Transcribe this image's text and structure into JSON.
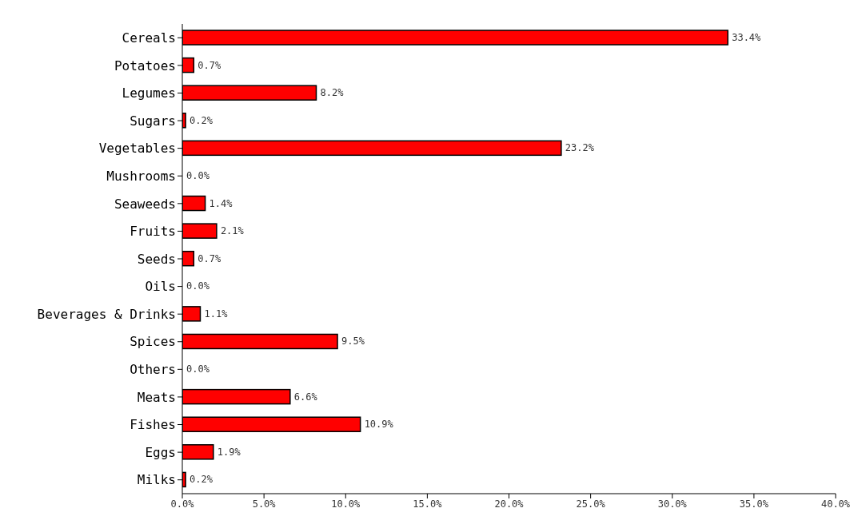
{
  "chart_data": {
    "type": "bar",
    "orientation": "horizontal",
    "categories": [
      "Cereals",
      "Potatoes",
      "Legumes",
      "Sugars",
      "Vegetables",
      "Mushrooms",
      "Seaweeds",
      "Fruits",
      "Seeds",
      "Oils",
      "Beverages & Drinks",
      "Spices",
      "Others",
      "Meats",
      "Fishes",
      "Eggs",
      "Milks"
    ],
    "values": [
      33.4,
      0.7,
      8.2,
      0.2,
      23.2,
      0.0,
      1.4,
      2.1,
      0.7,
      0.0,
      1.1,
      9.5,
      0.0,
      6.6,
      10.9,
      1.9,
      0.2
    ],
    "value_labels": [
      "33.4%",
      "0.7%",
      "8.2%",
      "0.2%",
      "23.2%",
      "0.0%",
      "1.4%",
      "2.1%",
      "0.7%",
      "0.0%",
      "1.1%",
      "9.5%",
      "0.0%",
      "6.6%",
      "10.9%",
      "1.9%",
      "0.2%"
    ],
    "color": "#ff0000",
    "xlim": [
      0,
      40
    ],
    "xticks": [
      {
        "value": 0,
        "label": "0.0%"
      },
      {
        "value": 5,
        "label": "5.0%"
      },
      {
        "value": 10,
        "label": "10.0%"
      },
      {
        "value": 15,
        "label": "15.0%"
      },
      {
        "value": 20,
        "label": "20.0%"
      },
      {
        "value": 25,
        "label": "25.0%"
      },
      {
        "value": 30,
        "label": "30.0%"
      },
      {
        "value": 35,
        "label": "35.0%"
      },
      {
        "value": 40,
        "label": "40.0%"
      }
    ],
    "grid": false,
    "legend": false
  }
}
